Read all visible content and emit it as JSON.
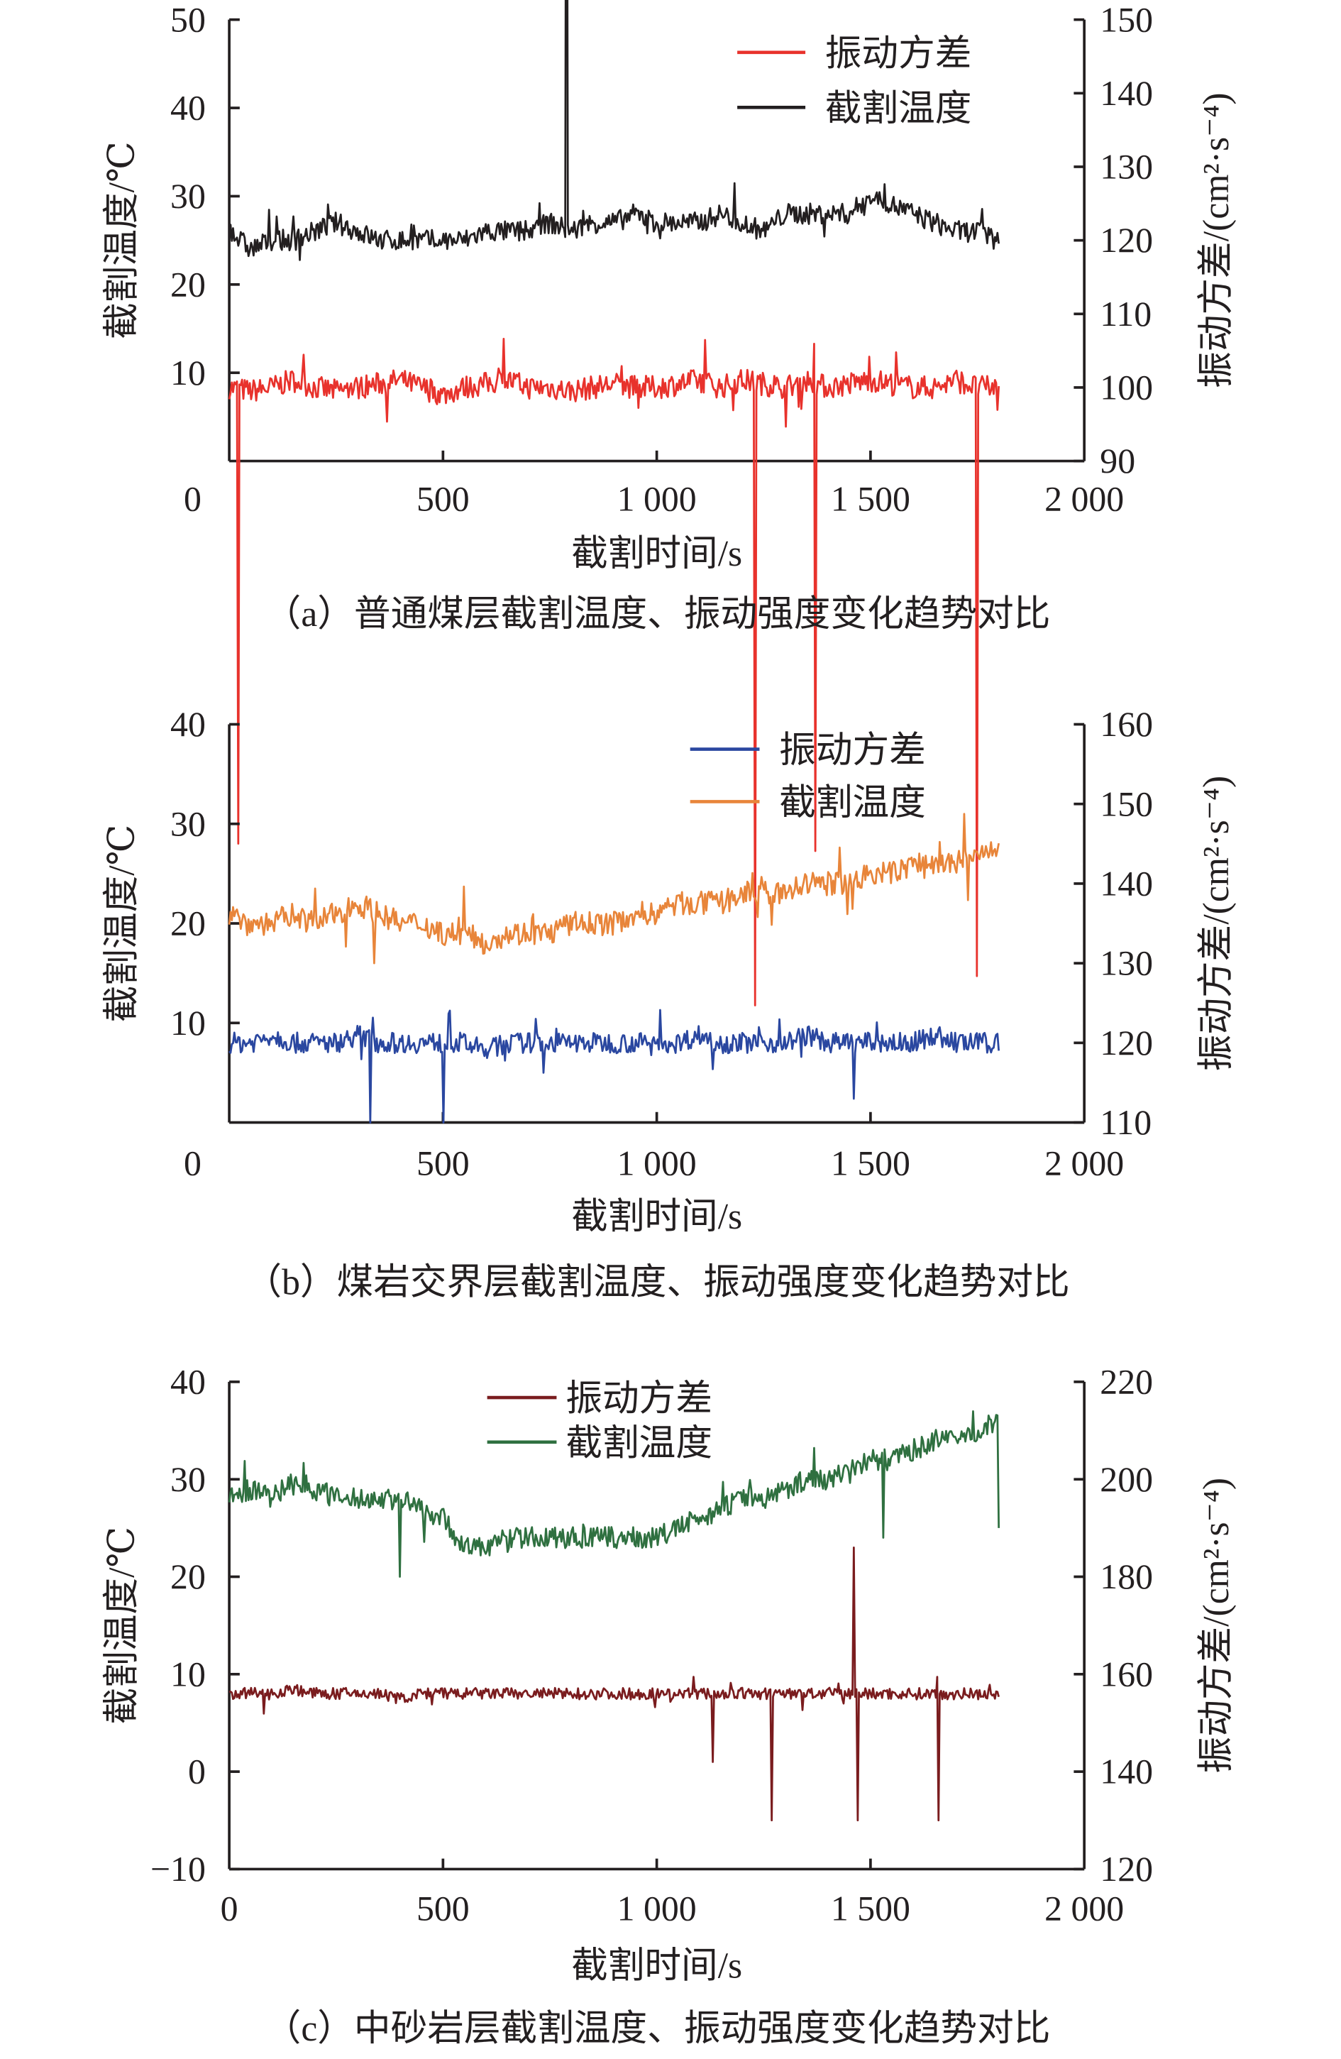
{
  "chart_data": [
    {
      "type": "line",
      "caption": "（a）普通煤层截割温度、振动强度变化趋势对比",
      "xlabel": "截割时间/s",
      "ylabel_left": "截割温度/℃",
      "ylabel_right": "振动方差/(cm²·s⁻⁴)",
      "xlim": [
        0,
        2000
      ],
      "xticks": [
        0,
        500,
        1000,
        1500,
        2000
      ],
      "xtick_labels": [
        "0",
        "500",
        "1 000",
        "1 500",
        "2 000"
      ],
      "ylim_left": [
        0,
        50
      ],
      "yticks_left": [
        10,
        20,
        30,
        40,
        50
      ],
      "ylim_right": [
        90,
        150
      ],
      "yticks_right": [
        90,
        100,
        110,
        120,
        130,
        140,
        150
      ],
      "legend_position": "top-right",
      "x_step": 50,
      "series": [
        {
          "name": "振动方差",
          "axis": "right",
          "color": "#e8322c",
          "noise": 1.6,
          "values": [
            100,
            99.5,
            100,
            101,
            100,
            99.5,
            100,
            100.5,
            101,
            100,
            99,
            100,
            100.5,
            101,
            100,
            100,
            99.5,
            100,
            100.5,
            100,
            100,
            100.5,
            101,
            100,
            101,
            100.5,
            100,
            101,
            100,
            100.5,
            101,
            100.5,
            100,
            100,
            101,
            100,
            100
          ]
        },
        {
          "name": "截割温度",
          "axis": "left",
          "color": "#231f20",
          "noise": 1.2,
          "values": [
            26,
            24,
            25,
            25,
            26,
            27,
            26,
            25,
            25,
            25,
            25,
            25,
            26,
            26,
            26,
            27,
            26,
            27,
            27,
            28,
            27,
            27,
            27,
            28,
            27,
            26,
            28,
            28,
            28,
            28,
            30,
            29,
            28,
            27,
            26,
            26,
            25
          ]
        }
      ]
    },
    {
      "type": "line",
      "caption": "（b）煤岩交界层截割温度、振动强度变化趋势对比",
      "xlabel": "截割时间/s",
      "ylabel_left": "截割温度/℃",
      "ylabel_right": "振动方差/(cm²·s⁻⁴)",
      "xlim": [
        0,
        2000
      ],
      "xticks": [
        0,
        500,
        1000,
        1500,
        2000
      ],
      "xtick_labels": [
        "0",
        "500",
        "1 000",
        "1 500",
        "2 000"
      ],
      "ylim_left": [
        0,
        40
      ],
      "yticks_left": [
        10,
        20,
        30,
        40
      ],
      "ylim_right": [
        110,
        160
      ],
      "yticks_right": [
        110,
        120,
        130,
        140,
        150,
        160
      ],
      "legend_position": "top-right",
      "x_step": 50,
      "series": [
        {
          "name": "振动方差",
          "axis": "right",
          "color": "#2a47a0",
          "noise": 1.3,
          "values": [
            120,
            120,
            121,
            120,
            120,
            120,
            121,
            120,
            120,
            120,
            120,
            120,
            119,
            120,
            120,
            120,
            120,
            120,
            120,
            120,
            120,
            120,
            121,
            120,
            120,
            120,
            120,
            121,
            120,
            120,
            120,
            120,
            120,
            121,
            120,
            120,
            120
          ]
        },
        {
          "name": "截割温度",
          "axis": "left",
          "color": "#e8853a",
          "noise": 1.2,
          "values": [
            21,
            20,
            20,
            21,
            20,
            21,
            22,
            21,
            20,
            20,
            19,
            19,
            18,
            19,
            19,
            19,
            20,
            20,
            20,
            21,
            21,
            22,
            22,
            22,
            23,
            23,
            23,
            24,
            24,
            24,
            25,
            25,
            26,
            26,
            26,
            27,
            27
          ]
        }
      ]
    },
    {
      "type": "line",
      "caption": "（c）中砂岩层截割温度、振动强度变化趋势对比",
      "xlabel": "截割时间/s",
      "ylabel_left": "截割温度/℃",
      "ylabel_right": "振动方差/(cm²·s⁻⁴)",
      "xlim": [
        0,
        2000
      ],
      "xticks": [
        0,
        500,
        1000,
        1500,
        2000
      ],
      "xtick_labels": [
        "0",
        "500",
        "1 000",
        "1 500",
        "2 000"
      ],
      "ylim_left": [
        -10,
        40
      ],
      "yticks_left": [
        -10,
        0,
        10,
        20,
        30,
        40
      ],
      "ytick_labels_left": [
        "−10",
        "0",
        "10",
        "20",
        "30",
        "40"
      ],
      "ylim_right": [
        120,
        220
      ],
      "yticks_right": [
        120,
        140,
        160,
        180,
        200,
        220
      ],
      "legend_position": "top-center",
      "x_step": 50,
      "series": [
        {
          "name": "振动方差",
          "axis": "right",
          "color": "#7a1c1e",
          "noise": 1.2,
          "values": [
            156,
            156,
            156,
            157,
            156,
            156,
            156,
            156,
            155,
            156,
            156,
            156,
            156,
            156,
            156,
            156,
            156,
            156,
            156,
            156,
            156,
            156,
            156,
            156,
            156,
            156,
            156,
            156,
            156,
            156,
            156,
            156,
            156,
            156,
            156,
            156,
            156
          ]
        },
        {
          "name": "截割温度",
          "axis": "left",
          "color": "#2f7040",
          "noise": 1.1,
          "values": [
            28,
            29,
            28,
            30,
            29,
            28,
            28,
            28,
            28,
            27,
            26,
            23,
            23,
            24,
            24,
            24,
            24,
            24,
            24,
            24,
            24,
            25,
            26,
            27,
            28,
            28,
            29,
            30,
            30,
            31,
            32,
            32,
            33,
            34,
            34,
            35,
            36
          ]
        }
      ]
    }
  ]
}
